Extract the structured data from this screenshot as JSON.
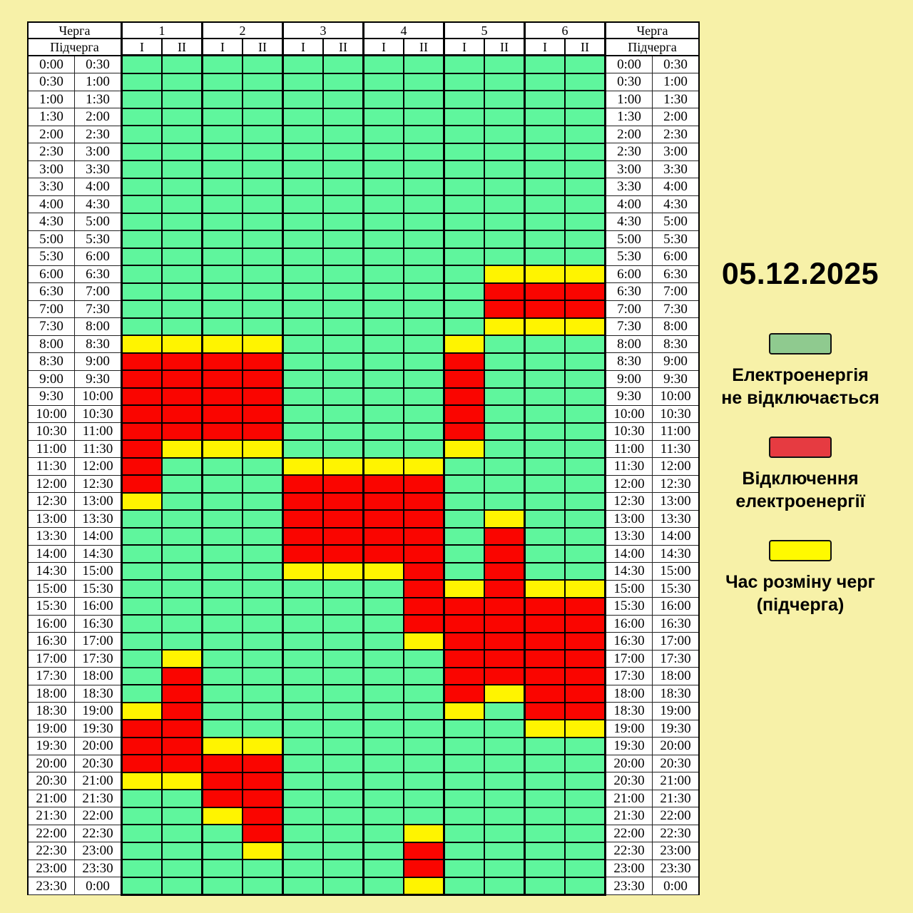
{
  "page": {
    "background": "#F7F1A8"
  },
  "date_heading": "05.12.2025",
  "table": {
    "queue_label": "Черга",
    "subqueue_label": "Підчерга",
    "queues": [
      "1",
      "2",
      "3",
      "4",
      "5",
      "6"
    ],
    "subqueues": [
      "I",
      "II"
    ]
  },
  "chart_data": {
    "type": "heatmap",
    "title": "05.12.2025",
    "x_categories": [
      "1-I",
      "1-II",
      "2-I",
      "2-II",
      "3-I",
      "3-II",
      "4-I",
      "4-II",
      "5-I",
      "5-II",
      "6-I",
      "6-II"
    ],
    "cell_states": {
      "G": "Електроенергія не відключається",
      "R": "Відключення електроенергії",
      "Y": "Час розміну черг (підчерга)"
    },
    "colors": {
      "G": "#5FF69D",
      "R": "#FA0500",
      "Y": "#FFF400"
    },
    "rows": [
      {
        "start": "0:00",
        "end": "0:30",
        "cells": "GGGGGGGGGGGG"
      },
      {
        "start": "0:30",
        "end": "1:00",
        "cells": "GGGGGGGGGGGG"
      },
      {
        "start": "1:00",
        "end": "1:30",
        "cells": "GGGGGGGGGGGG"
      },
      {
        "start": "1:30",
        "end": "2:00",
        "cells": "GGGGGGGGGGGG"
      },
      {
        "start": "2:00",
        "end": "2:30",
        "cells": "GGGGGGGGGGGG"
      },
      {
        "start": "2:30",
        "end": "3:00",
        "cells": "GGGGGGGGGGGG"
      },
      {
        "start": "3:00",
        "end": "3:30",
        "cells": "GGGGGGGGGGGG"
      },
      {
        "start": "3:30",
        "end": "4:00",
        "cells": "GGGGGGGGGGGG"
      },
      {
        "start": "4:00",
        "end": "4:30",
        "cells": "GGGGGGGGGGGG"
      },
      {
        "start": "4:30",
        "end": "5:00",
        "cells": "GGGGGGGGGGGG"
      },
      {
        "start": "5:00",
        "end": "5:30",
        "cells": "GGGGGGGGGGGG"
      },
      {
        "start": "5:30",
        "end": "6:00",
        "cells": "GGGGGGGGGGGG"
      },
      {
        "start": "6:00",
        "end": "6:30",
        "cells": "GGGGGGGGGYYY"
      },
      {
        "start": "6:30",
        "end": "7:00",
        "cells": "GGGGGGGGGRRR"
      },
      {
        "start": "7:00",
        "end": "7:30",
        "cells": "GGGGGGGGGRRR"
      },
      {
        "start": "7:30",
        "end": "8:00",
        "cells": "GGGGGGGGGYYY"
      },
      {
        "start": "8:00",
        "end": "8:30",
        "cells": "YYYYGGGGYGGG"
      },
      {
        "start": "8:30",
        "end": "9:00",
        "cells": "RRRRGGGGRGGG"
      },
      {
        "start": "9:00",
        "end": "9:30",
        "cells": "RRRRGGGGRGGG"
      },
      {
        "start": "9:30",
        "end": "10:00",
        "cells": "RRRRGGGGRGGG"
      },
      {
        "start": "10:00",
        "end": "10:30",
        "cells": "RRRRGGGGRGGG"
      },
      {
        "start": "10:30",
        "end": "11:00",
        "cells": "RRRRGGGGRGGG"
      },
      {
        "start": "11:00",
        "end": "11:30",
        "cells": "RYYYGGGGYGGG"
      },
      {
        "start": "11:30",
        "end": "12:00",
        "cells": "RGGGYYYYGGGG"
      },
      {
        "start": "12:00",
        "end": "12:30",
        "cells": "RGGGRRRRGGGG"
      },
      {
        "start": "12:30",
        "end": "13:00",
        "cells": "YGGGRRRRGGGG"
      },
      {
        "start": "13:00",
        "end": "13:30",
        "cells": "GGGGRRRRGYGG"
      },
      {
        "start": "13:30",
        "end": "14:00",
        "cells": "GGGGRRRRGRGG"
      },
      {
        "start": "14:00",
        "end": "14:30",
        "cells": "GGGGRRRRGRGG"
      },
      {
        "start": "14:30",
        "end": "15:00",
        "cells": "GGGGYYYRGRGG"
      },
      {
        "start": "15:00",
        "end": "15:30",
        "cells": "GGGGGGGRYRYY"
      },
      {
        "start": "15:30",
        "end": "16:00",
        "cells": "GGGGGGGRRRRR"
      },
      {
        "start": "16:00",
        "end": "16:30",
        "cells": "GGGGGGGRRRRR"
      },
      {
        "start": "16:30",
        "end": "17:00",
        "cells": "GGGGGGGYRRRR"
      },
      {
        "start": "17:00",
        "end": "17:30",
        "cells": "GYGGGGGGRRRR"
      },
      {
        "start": "17:30",
        "end": "18:00",
        "cells": "GRGGGGGGRRRR"
      },
      {
        "start": "18:00",
        "end": "18:30",
        "cells": "GRGGGGGGRYRR"
      },
      {
        "start": "18:30",
        "end": "19:00",
        "cells": "YRGGGGGGYGRR"
      },
      {
        "start": "19:00",
        "end": "19:30",
        "cells": "RRGGGGGGGGYY"
      },
      {
        "start": "19:30",
        "end": "20:00",
        "cells": "RRYYGGGGGGGG"
      },
      {
        "start": "20:00",
        "end": "20:30",
        "cells": "RRRRGGGGGGGG"
      },
      {
        "start": "20:30",
        "end": "21:00",
        "cells": "YYRRGGGGGGGG"
      },
      {
        "start": "21:00",
        "end": "21:30",
        "cells": "GGRRGGGGGGGG"
      },
      {
        "start": "21:30",
        "end": "22:00",
        "cells": "GGYRGGGGGGGG"
      },
      {
        "start": "22:00",
        "end": "22:30",
        "cells": "GGGRGGGYGGGG"
      },
      {
        "start": "22:30",
        "end": "23:00",
        "cells": "GGGYGGGRGGGG"
      },
      {
        "start": "23:00",
        "end": "23:30",
        "cells": "GGGGGGGRGGGG"
      },
      {
        "start": "23:30",
        "end": "0:00",
        "cells": "GGGGGGGYGGGG"
      }
    ]
  },
  "legend": [
    {
      "code": "G",
      "swatch_color": "#8FCA8F",
      "label": "Електроенергія\nне відключається"
    },
    {
      "code": "R",
      "swatch_color": "#E63B41",
      "label": "Відключення\nелектроенергії"
    },
    {
      "code": "Y",
      "swatch_color": "#FFFA00",
      "label": "Час розміну черг\n(підчерга)"
    }
  ]
}
